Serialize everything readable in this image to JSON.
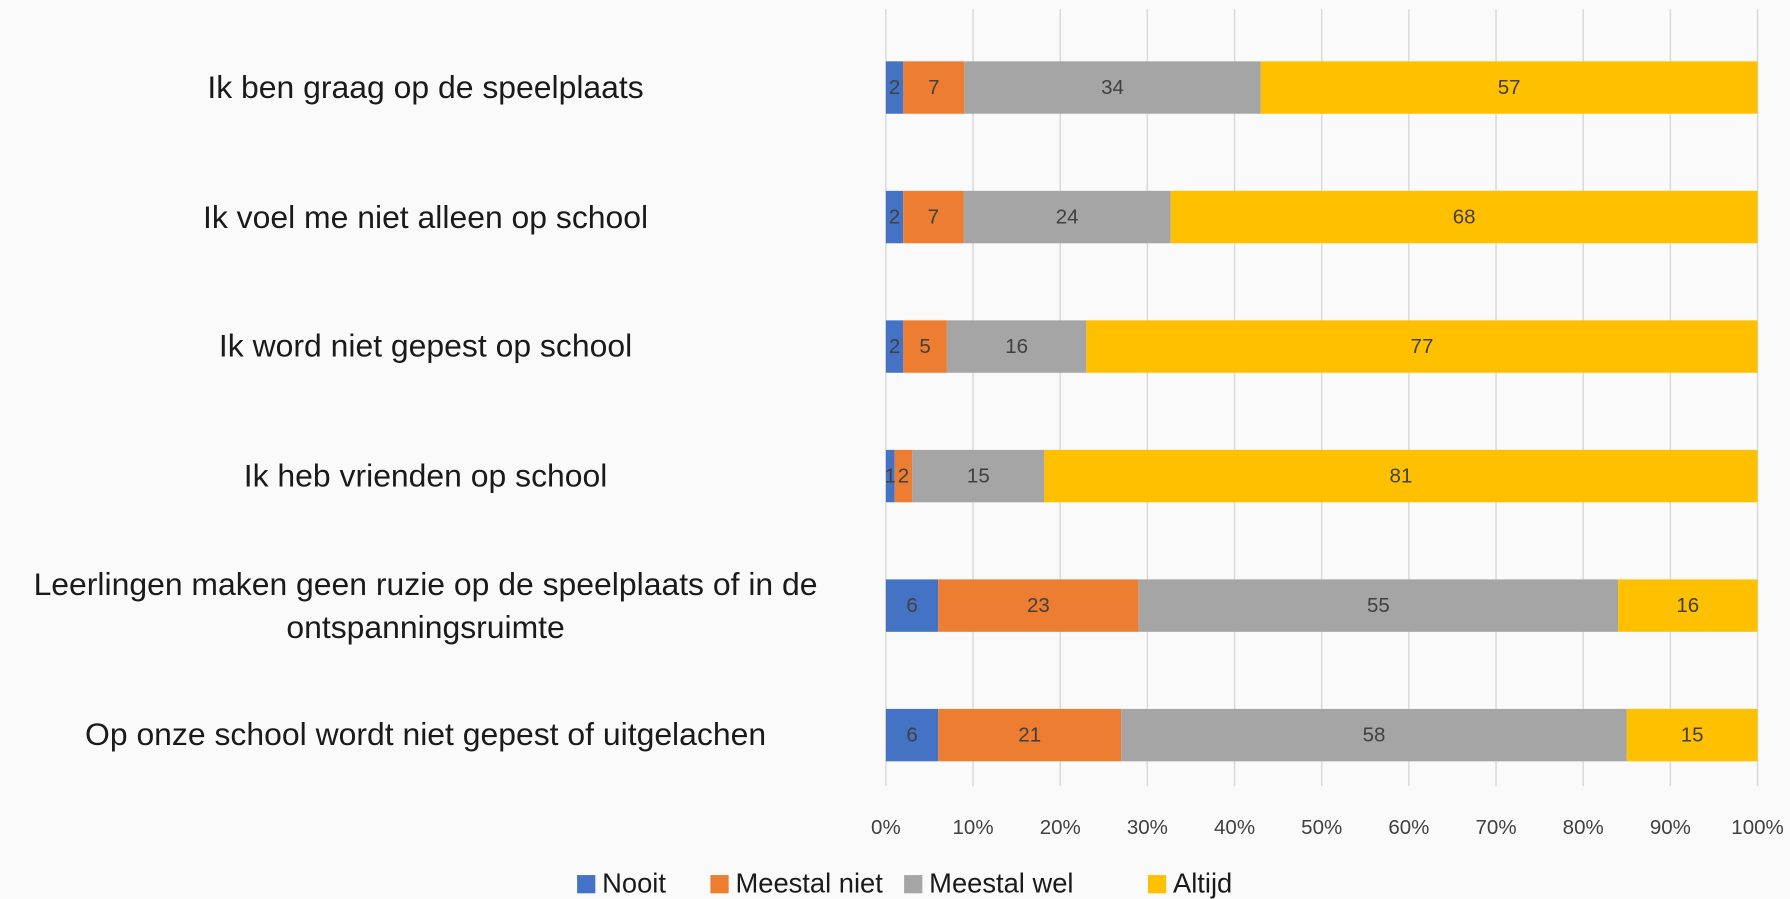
{
  "chart_data": {
    "type": "bar",
    "orientation": "horizontal",
    "stacking": "percent",
    "categories": [
      "Ik ben graag op de speelplaats",
      "Ik voel me niet alleen op school",
      "Ik word niet gepest op school",
      "Ik heb vrienden op school",
      "Leerlingen maken geen ruzie op de speelplaats of in de ontspanningsruimte",
      "Op onze school wordt niet gepest of uitgelachen"
    ],
    "series": [
      {
        "name": "Nooit",
        "color": "#4472c4",
        "values": [
          2,
          2,
          2,
          1,
          6,
          6
        ]
      },
      {
        "name": "Meestal niet",
        "color": "#ed7d31",
        "values": [
          7,
          7,
          5,
          2,
          23,
          21
        ]
      },
      {
        "name": "Meestal wel",
        "color": "#a5a5a5",
        "values": [
          34,
          24,
          16,
          15,
          55,
          58
        ]
      },
      {
        "name": "Altijd",
        "color": "#ffc000",
        "values": [
          57,
          68,
          77,
          81,
          16,
          15
        ]
      }
    ],
    "xlim": [
      0,
      100
    ],
    "xticks": [
      {
        "value": 0,
        "label": "0%"
      },
      {
        "value": 10,
        "label": "10%"
      },
      {
        "value": 20,
        "label": "20%"
      },
      {
        "value": 30,
        "label": "30%"
      },
      {
        "value": 40,
        "label": "40%"
      },
      {
        "value": 50,
        "label": "50%"
      },
      {
        "value": 60,
        "label": "60%"
      },
      {
        "value": 70,
        "label": "70%"
      },
      {
        "value": 80,
        "label": "80%"
      },
      {
        "value": 90,
        "label": "90%"
      },
      {
        "value": 100,
        "label": "100%"
      }
    ],
    "grid": true,
    "data_labels": true,
    "legend": "bottom"
  }
}
